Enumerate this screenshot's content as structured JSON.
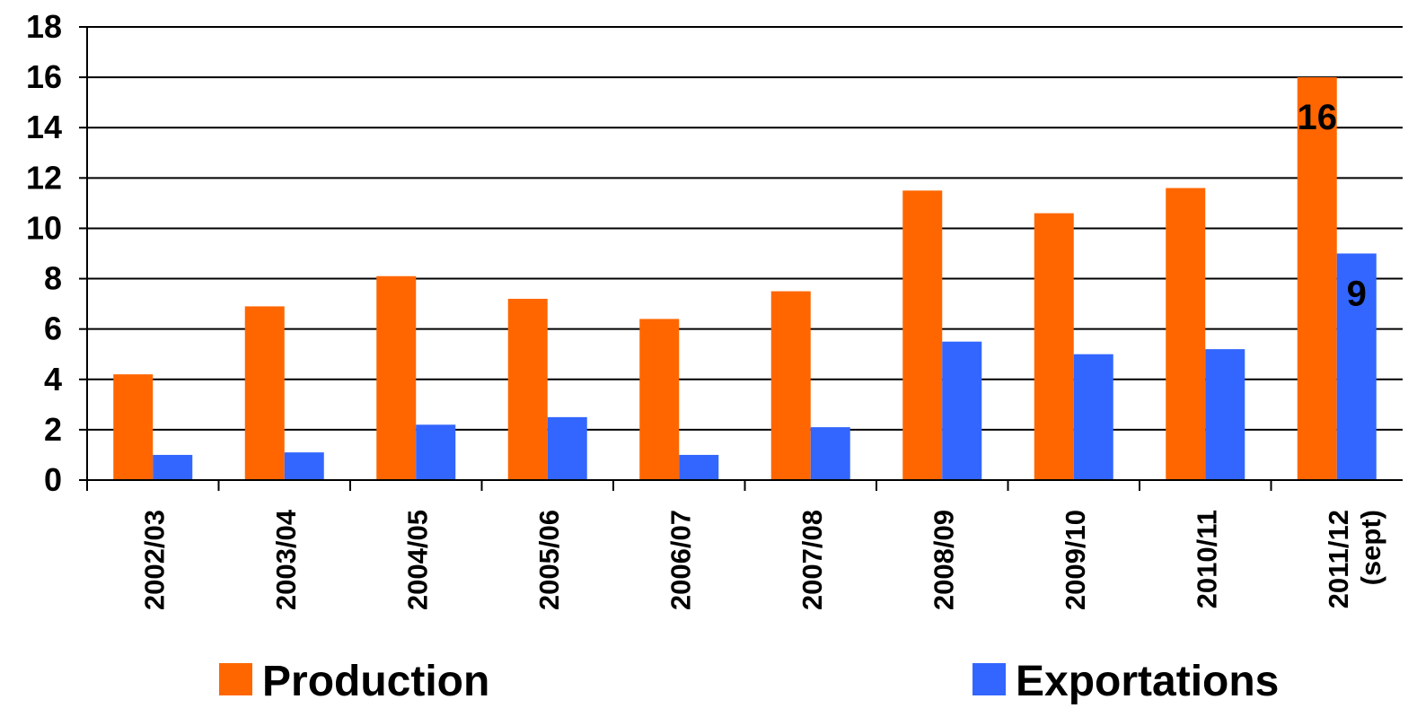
{
  "chart_data": {
    "type": "bar",
    "categories": [
      "2002/03",
      "2003/04",
      "2004/05",
      "2005/06",
      "2006/07",
      "2007/08",
      "2008/09",
      "2009/10",
      "2010/11",
      [
        "2011/12",
        "(sept)"
      ]
    ],
    "series": [
      {
        "name": "Production",
        "color": "#ff6600",
        "values": [
          4.2,
          6.9,
          8.1,
          7.2,
          6.4,
          7.5,
          11.5,
          10.6,
          11.6,
          16
        ]
      },
      {
        "name": "Exportations",
        "color": "#3366ff",
        "values": [
          1.0,
          1.1,
          2.2,
          2.5,
          1.0,
          2.1,
          5.5,
          5.0,
          5.2,
          9
        ]
      }
    ],
    "data_labels": [
      {
        "series": 0,
        "index": 9,
        "text": "16"
      },
      {
        "series": 1,
        "index": 9,
        "text": "9"
      }
    ],
    "yticks": [
      "0",
      "2",
      "4",
      "6",
      "8",
      "10",
      "12",
      "14",
      "16",
      "18"
    ],
    "ylim": [
      0,
      18
    ],
    "grid": true,
    "legend_position": "bottom",
    "title": "",
    "xlabel": "",
    "ylabel": ""
  }
}
